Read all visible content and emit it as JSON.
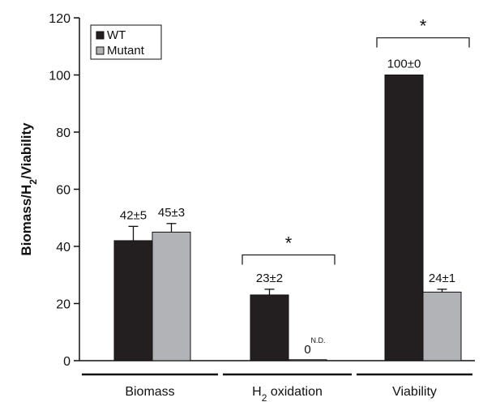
{
  "chart_data": {
    "type": "bar",
    "ylabel_parts": [
      "Biomass/H",
      "2",
      "/Viability"
    ],
    "ylim": [
      0,
      120
    ],
    "yticks": [
      "0",
      "20",
      "40",
      "60",
      "80",
      "100",
      "120"
    ],
    "categories": [
      {
        "parts": [
          "Biomass"
        ]
      },
      {
        "parts": [
          "H",
          "2",
          " oxidation"
        ]
      },
      {
        "parts": [
          "Viability"
        ]
      }
    ],
    "series": [
      {
        "name": "WT",
        "color": "#231f20",
        "values": [
          42,
          23,
          100
        ],
        "errors": [
          5,
          2,
          0
        ],
        "labels": [
          "42±5",
          "23±2",
          "100±0"
        ]
      },
      {
        "name": "Mutant",
        "color": "#b1b3b6",
        "values": [
          45,
          0,
          24
        ],
        "errors": [
          3,
          0,
          1
        ],
        "labels": [
          "45±3",
          "0",
          "24±1"
        ]
      }
    ],
    "annotations": {
      "nd_label": "N.D.",
      "significance": [
        {
          "category": 1,
          "symbol": "*",
          "y": 37
        },
        {
          "category": 2,
          "symbol": "*",
          "y": 113
        }
      ]
    },
    "legend_position": "top-left",
    "grid": false
  }
}
